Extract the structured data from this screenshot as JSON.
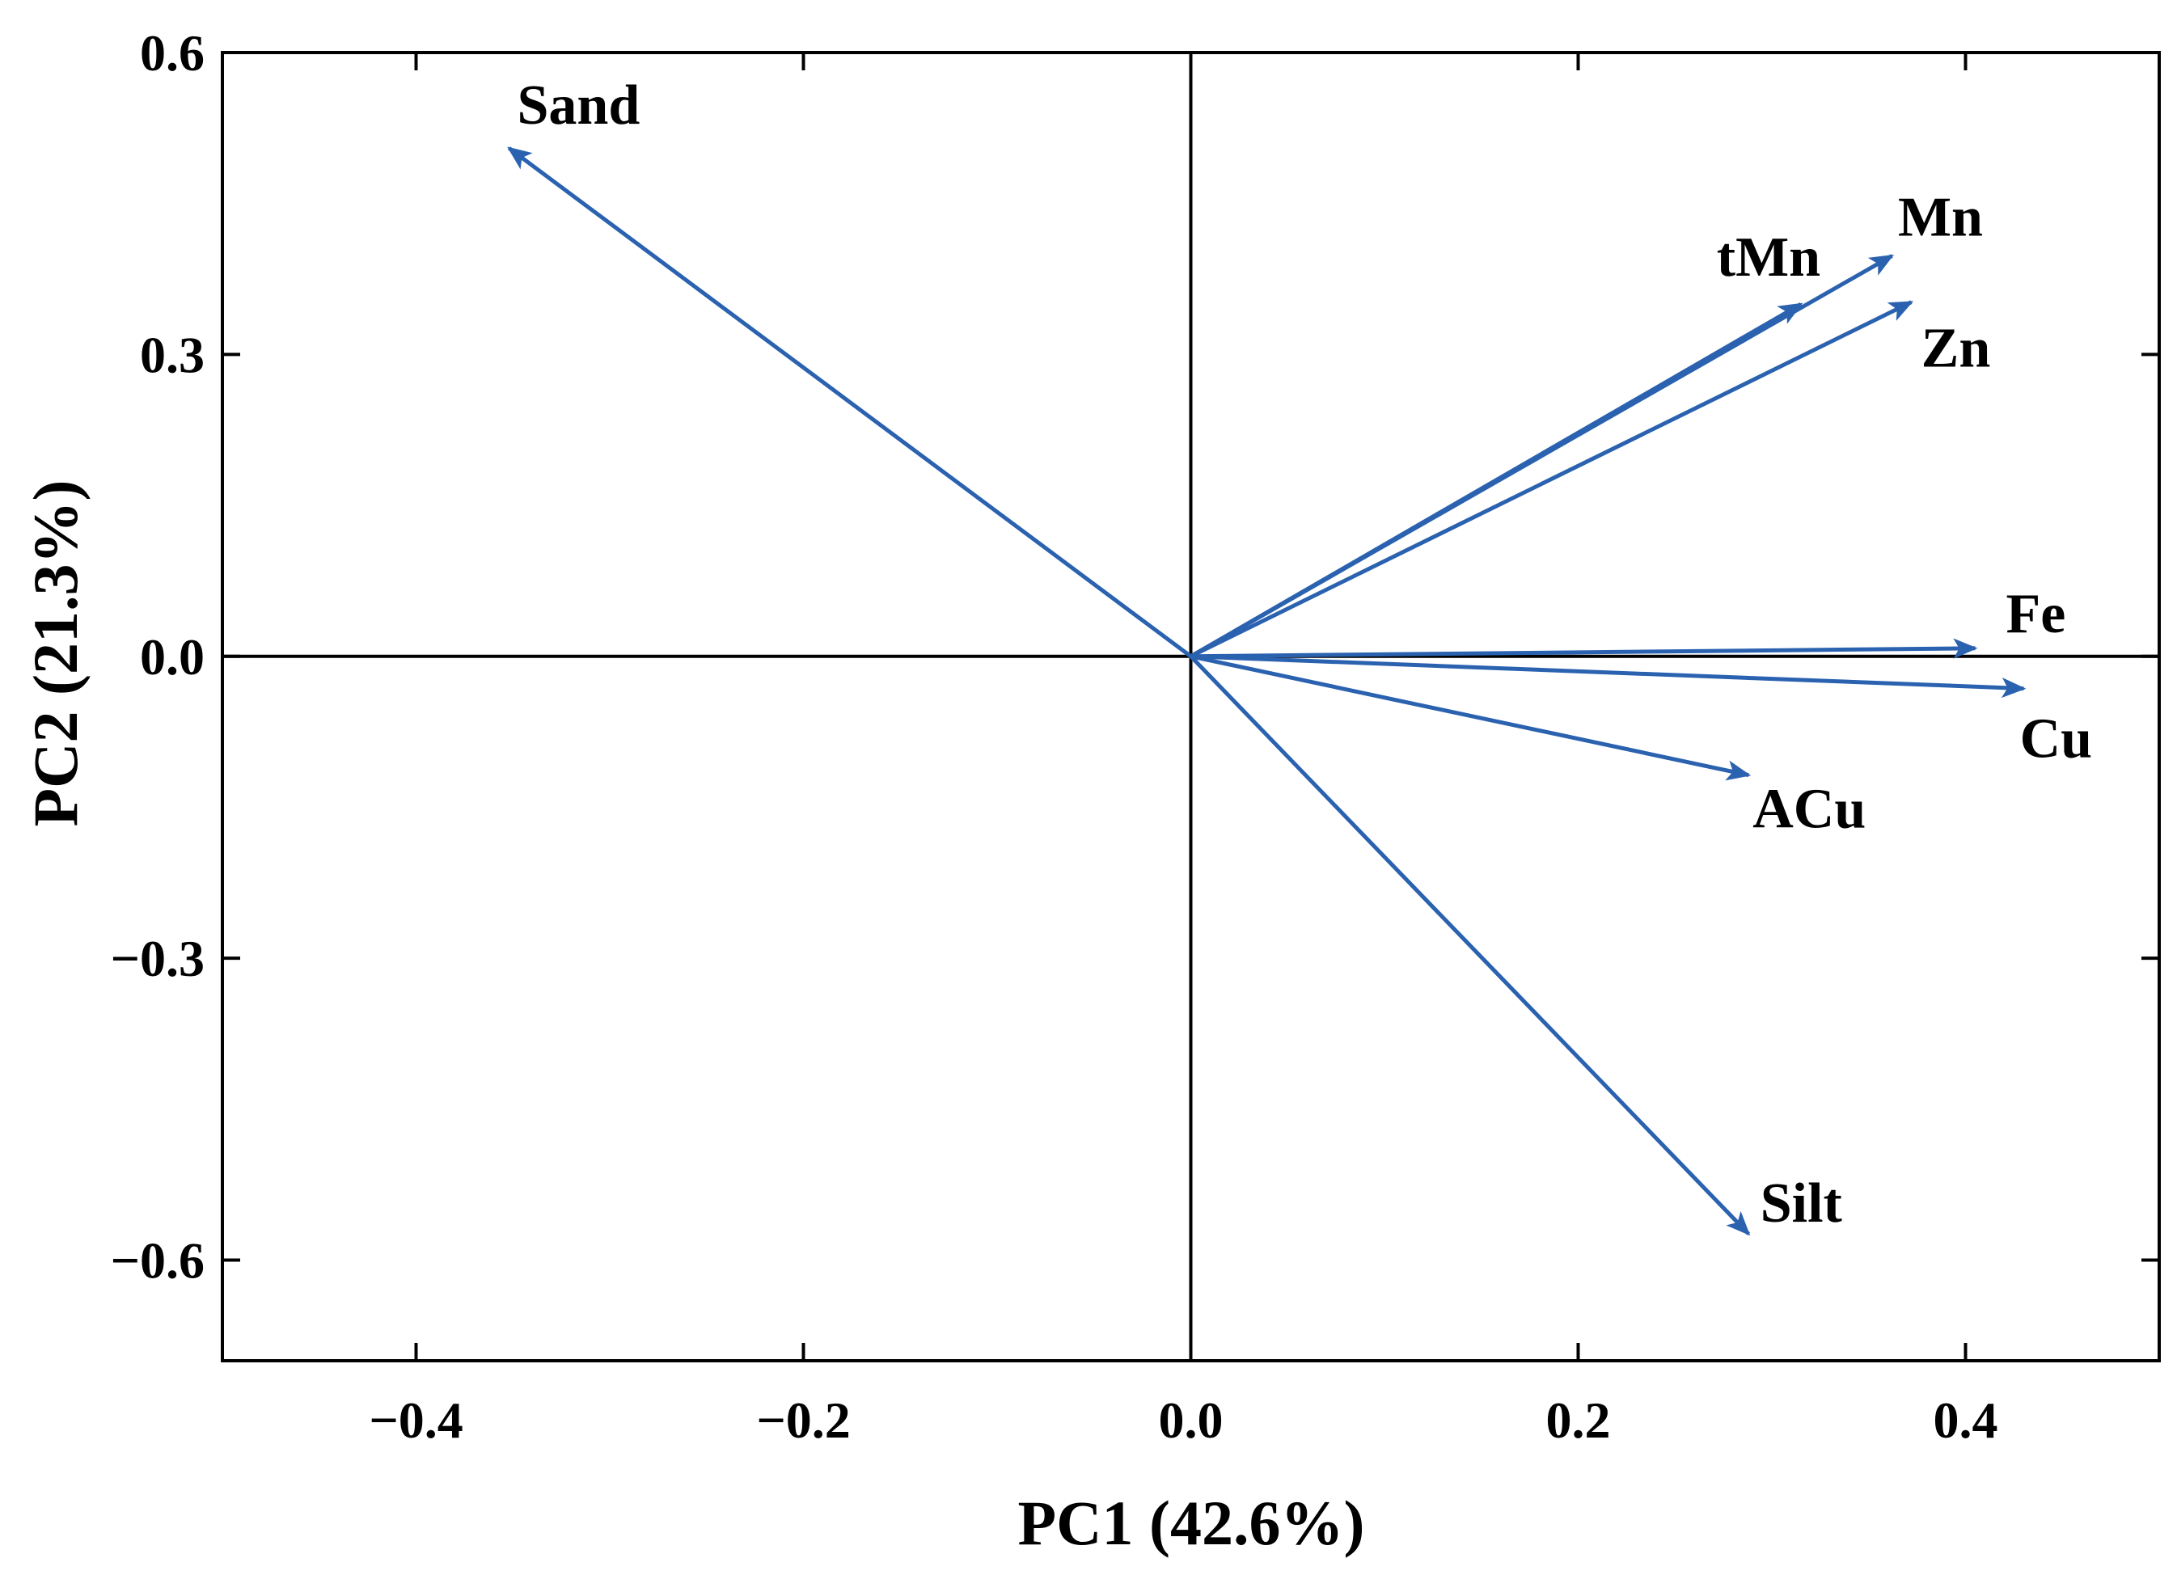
{
  "chart_data": {
    "type": "biplot",
    "xlabel": "PC1 (42.6%)",
    "ylabel": "PC2 (21.3%)",
    "xlim": [
      -0.5,
      0.5
    ],
    "ylim": [
      -0.7,
      0.6
    ],
    "xticks": [
      {
        "value": -0.4,
        "label": "−0.4"
      },
      {
        "value": -0.2,
        "label": "−0.2"
      },
      {
        "value": 0.0,
        "label": "0.0"
      },
      {
        "value": 0.2,
        "label": "0.2"
      },
      {
        "value": 0.4,
        "label": "0.4"
      }
    ],
    "yticks": [
      {
        "value": 0.6,
        "label": "0.6"
      },
      {
        "value": 0.3,
        "label": "0.3"
      },
      {
        "value": 0.0,
        "label": "0.0"
      },
      {
        "value": -0.3,
        "label": "−0.3"
      },
      {
        "value": -0.6,
        "label": "−0.6"
      }
    ],
    "grid": false,
    "vector_color": "#2b62b0",
    "vectors": [
      {
        "name": "Sand",
        "x": -0.352,
        "y": 0.505
      },
      {
        "name": "tMn",
        "x": 0.315,
        "y": 0.35
      },
      {
        "name": "Mn",
        "x": 0.362,
        "y": 0.398
      },
      {
        "name": "Zn",
        "x": 0.372,
        "y": 0.352
      },
      {
        "name": "Fe",
        "x": 0.405,
        "y": 0.008
      },
      {
        "name": "Cu",
        "x": 0.43,
        "y": -0.032
      },
      {
        "name": "ACu",
        "x": 0.288,
        "y": -0.118
      },
      {
        "name": "Silt",
        "x": 0.288,
        "y": -0.574
      }
    ]
  }
}
